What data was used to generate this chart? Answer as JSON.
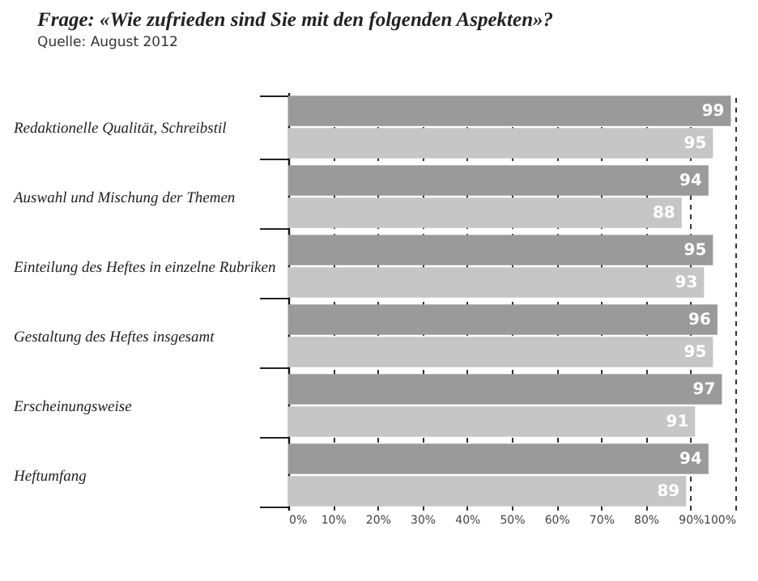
{
  "chart_data": {
    "type": "bar",
    "orientation": "horizontal",
    "title": "Frage: «Wie zufrieden sind Sie mit den folgenden Aspekten»?",
    "subtitle": "Quelle: August 2012",
    "categories": [
      "Redaktionelle Qualität, Schreibstil",
      "Auswahl und Mischung der Themen",
      "Einteilung des Heftes in einzelne Rubriken",
      "Gestaltung des Heftes insgesamt",
      "Erscheinungsweise",
      "Heftumfang"
    ],
    "series": [
      {
        "color": "#9a9a9a",
        "values": [
          99,
          94,
          95,
          96,
          97,
          94
        ]
      },
      {
        "color": "#c6c6c6",
        "values": [
          95,
          88,
          93,
          95,
          91,
          89
        ]
      }
    ],
    "xlim": [
      0,
      100
    ],
    "xticks": [
      {
        "value": 0,
        "label": "0%"
      },
      {
        "value": 10,
        "label": "10%"
      },
      {
        "value": 20,
        "label": "20%"
      },
      {
        "value": 30,
        "label": "30%"
      },
      {
        "value": 40,
        "label": "40%"
      },
      {
        "value": 50,
        "label": "50%"
      },
      {
        "value": 60,
        "label": "60%"
      },
      {
        "value": 70,
        "label": "70%"
      },
      {
        "value": 80,
        "label": "80%"
      },
      {
        "value": 90,
        "label": "90%"
      },
      {
        "value": 100,
        "label": "100%"
      }
    ],
    "grid": "x",
    "data_labels": true
  }
}
